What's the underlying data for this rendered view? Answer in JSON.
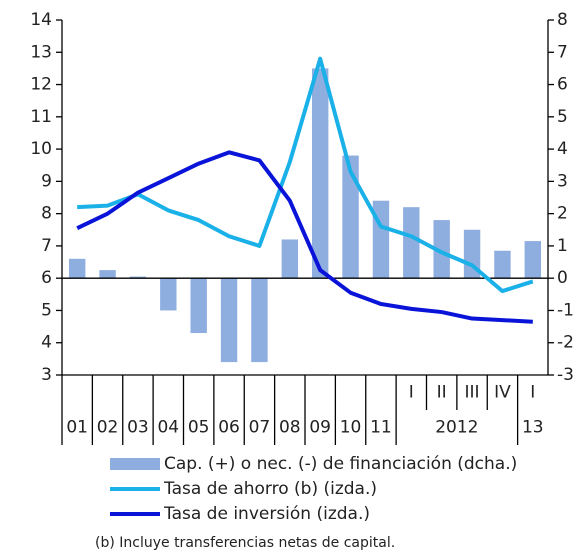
{
  "chart_data": {
    "type": "bar-line",
    "categories": [
      "01",
      "02",
      "03",
      "04",
      "05",
      "06",
      "07",
      "08",
      "09",
      "10",
      "11",
      "I",
      "II",
      "III",
      "IV",
      "I"
    ],
    "year_labels": [
      "2012",
      "13"
    ],
    "ylim": [
      3,
      14
    ],
    "yticks": [
      3,
      4,
      5,
      6,
      7,
      8,
      9,
      10,
      11,
      12,
      13,
      14
    ],
    "y2lim": [
      -3,
      8
    ],
    "y2ticks": [
      -3,
      -2,
      -1,
      0,
      1,
      2,
      3,
      4,
      5,
      6,
      7,
      8
    ],
    "series": [
      {
        "name": "Cap. (+) o nec. (-) de financiación (dcha.)",
        "type": "bar",
        "axis": "y2",
        "color": "#8eaee0",
        "values": [
          0.6,
          0.25,
          0.05,
          -1.0,
          -1.7,
          -2.6,
          -2.6,
          1.2,
          6.5,
          3.8,
          2.4,
          2.2,
          1.8,
          1.5,
          0.85,
          1.15
        ]
      },
      {
        "name": "Tasa de ahorro (b) (izda.)",
        "type": "line",
        "color": "#1ab0e8",
        "values": [
          8.2,
          8.25,
          8.6,
          8.1,
          7.8,
          7.3,
          7.0,
          9.6,
          12.8,
          9.3,
          7.6,
          7.3,
          6.8,
          6.4,
          5.6,
          5.9
        ]
      },
      {
        "name": "Tasa de inversión (izda.)",
        "type": "line",
        "color": "#0a14d8",
        "values": [
          7.55,
          8.0,
          8.65,
          9.1,
          9.55,
          9.9,
          9.65,
          8.4,
          6.25,
          5.55,
          5.2,
          5.05,
          4.95,
          4.75,
          4.7,
          4.65
        ]
      }
    ],
    "footnote": "(b) Incluye transferencias netas de capital."
  }
}
